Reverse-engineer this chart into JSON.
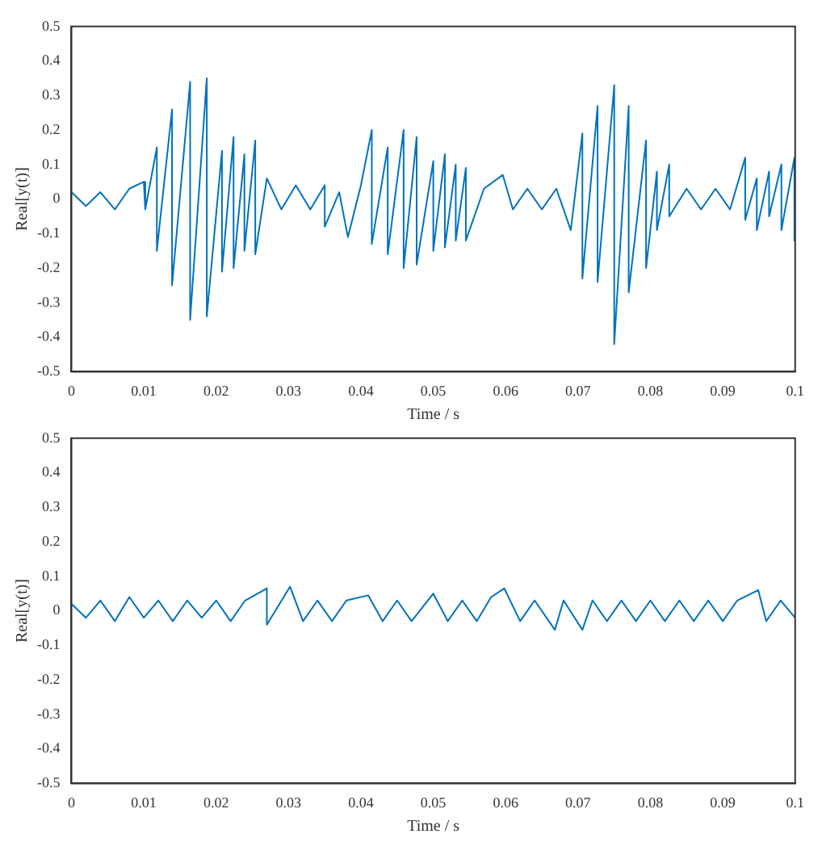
{
  "chart_data": [
    {
      "type": "line",
      "xlabel": "Time / s",
      "ylabel": "Real[y(t)]",
      "color": "#0072bd",
      "grid": false,
      "xlim": [
        0,
        0.1
      ],
      "xticks": [
        0,
        0.01,
        0.02,
        0.03,
        0.04,
        0.05,
        0.06,
        0.07,
        0.08,
        0.09,
        0.1
      ],
      "ylim": [
        -0.5,
        0.5
      ],
      "yticks": [
        -0.5,
        -0.4,
        -0.3,
        -0.2,
        -0.1,
        0,
        0.1,
        0.2,
        0.3,
        0.4,
        0.5
      ],
      "x": [
        0,
        0.002,
        0.004,
        0.006,
        0.008,
        0.01,
        0.0102,
        0.0118,
        0.0118,
        0.0139,
        0.0139,
        0.0164,
        0.0164,
        0.0187,
        0.0187,
        0.0208,
        0.0208,
        0.0224,
        0.0224,
        0.0239,
        0.0239,
        0.0254,
        0.0254,
        0.027,
        0.029,
        0.031,
        0.033,
        0.035,
        0.035,
        0.037,
        0.0382,
        0.04,
        0.0415,
        0.0415,
        0.0437,
        0.0437,
        0.0459,
        0.0459,
        0.0477,
        0.0477,
        0.05,
        0.05,
        0.0516,
        0.0516,
        0.0531,
        0.0531,
        0.0545,
        0.0545,
        0.057,
        0.0596,
        0.061,
        0.063,
        0.065,
        0.067,
        0.069,
        0.0706,
        0.0706,
        0.0727,
        0.0727,
        0.075,
        0.075,
        0.077,
        0.077,
        0.0794,
        0.0794,
        0.0809,
        0.0809,
        0.0826,
        0.0826,
        0.085,
        0.087,
        0.089,
        0.091,
        0.0931,
        0.0931,
        0.0947,
        0.0947,
        0.0964,
        0.0964,
        0.0981,
        0.0981,
        0.0999,
        0.0999
      ],
      "values": [
        0.02,
        -0.02,
        0.02,
        -0.03,
        0.03,
        0.05,
        -0.03,
        0.15,
        -0.15,
        0.26,
        -0.25,
        0.34,
        -0.35,
        0.35,
        -0.34,
        0.14,
        -0.21,
        0.18,
        -0.2,
        0.13,
        -0.15,
        0.17,
        -0.16,
        0.06,
        -0.03,
        0.04,
        -0.03,
        0.04,
        -0.08,
        0.02,
        -0.11,
        0.04,
        0.2,
        -0.13,
        0.15,
        -0.16,
        0.2,
        -0.2,
        0.18,
        -0.19,
        0.11,
        -0.15,
        0.13,
        -0.14,
        0.1,
        -0.12,
        0.09,
        -0.12,
        0.03,
        0.07,
        -0.03,
        0.03,
        -0.03,
        0.03,
        -0.09,
        0.19,
        -0.23,
        0.27,
        -0.24,
        0.33,
        -0.42,
        0.27,
        -0.27,
        0.17,
        -0.2,
        0.08,
        -0.09,
        0.1,
        -0.05,
        0.03,
        -0.03,
        0.03,
        -0.03,
        0.12,
        -0.06,
        0.06,
        -0.09,
        0.08,
        -0.05,
        0.1,
        -0.09,
        0.12,
        -0.12
      ]
    },
    {
      "type": "line",
      "xlabel": "Time / s",
      "ylabel": "Real[y(t)]",
      "color": "#0072bd",
      "grid": false,
      "xlim": [
        0,
        0.1
      ],
      "xticks": [
        0,
        0.01,
        0.02,
        0.03,
        0.04,
        0.05,
        0.06,
        0.07,
        0.08,
        0.09,
        0.1
      ],
      "ylim": [
        -0.5,
        0.5
      ],
      "yticks": [
        -0.5,
        -0.4,
        -0.3,
        -0.2,
        -0.1,
        0,
        0.1,
        0.2,
        0.3,
        0.4,
        0.5
      ],
      "x": [
        0,
        0.002,
        0.004,
        0.006,
        0.008,
        0.01,
        0.012,
        0.014,
        0.016,
        0.018,
        0.02,
        0.022,
        0.024,
        0.027,
        0.027,
        0.0302,
        0.032,
        0.034,
        0.036,
        0.038,
        0.041,
        0.043,
        0.045,
        0.047,
        0.05,
        0.052,
        0.054,
        0.056,
        0.058,
        0.0598,
        0.062,
        0.064,
        0.0668,
        0.068,
        0.0706,
        0.072,
        0.074,
        0.076,
        0.078,
        0.08,
        0.082,
        0.084,
        0.086,
        0.088,
        0.09,
        0.092,
        0.0949,
        0.096,
        0.098,
        0.1
      ],
      "values": [
        0.02,
        -0.02,
        0.03,
        -0.03,
        0.04,
        -0.02,
        0.03,
        -0.03,
        0.03,
        -0.02,
        0.03,
        -0.03,
        0.03,
        0.065,
        -0.04,
        0.07,
        -0.03,
        0.03,
        -0.03,
        0.03,
        0.045,
        -0.03,
        0.03,
        -0.03,
        0.05,
        -0.03,
        0.03,
        -0.03,
        0.04,
        0.065,
        -0.03,
        0.03,
        -0.055,
        0.03,
        -0.055,
        0.03,
        -0.03,
        0.03,
        -0.03,
        0.03,
        -0.03,
        0.03,
        -0.03,
        0.03,
        -0.03,
        0.03,
        0.06,
        -0.03,
        0.03,
        -0.02
      ]
    }
  ]
}
